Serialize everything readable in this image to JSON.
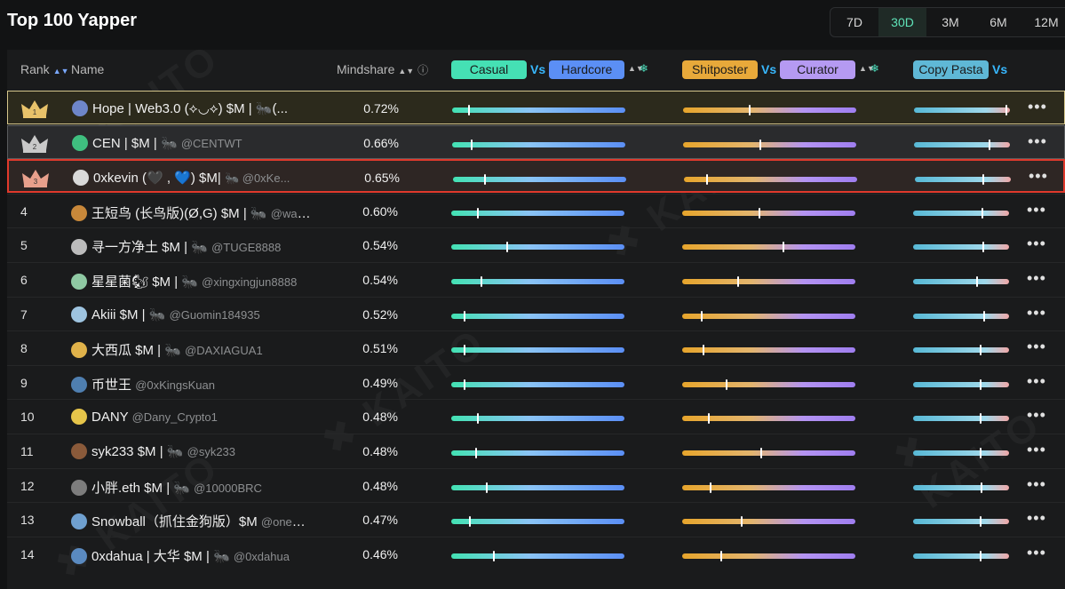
{
  "title": "Top 100 Yapper",
  "periods": [
    "7D",
    "30D",
    "3M",
    "6M",
    "12M"
  ],
  "active_period": "30D",
  "header": {
    "rank": "Rank",
    "name": "Name",
    "mindshare": "Mindshare",
    "group1": {
      "left": "Casual",
      "vs": "Vs",
      "right": "Hardcore"
    },
    "group2": {
      "left": "Shitposter",
      "vs": "Vs",
      "right": "Curator"
    },
    "group3": {
      "left": "Copy Pasta",
      "vs": "Vs"
    }
  },
  "colors": {
    "casual": "#45e0b4",
    "hardcore": "#5b8ff5",
    "shitposter": "#e8a93a",
    "curator": "#b59af2",
    "copypasta": "#5fb8d6",
    "vs": "#38b8ff",
    "highlight_border": "#e0392c",
    "gold_border": "#d5c78c"
  },
  "rows": [
    {
      "rank": "1",
      "name": "Hope | Web3.0 (⟡◡⟡) $M | 🐜(...",
      "handle": "",
      "mindshare": "0.72%",
      "casual": 0.09,
      "shit": 0.38,
      "copy": 0.95,
      "avatar": "#6e86c9"
    },
    {
      "rank": "2",
      "name": "CEN | $M | 🐜",
      "handle": "@CENTWT",
      "mindshare": "0.66%",
      "casual": 0.11,
      "shit": 0.44,
      "copy": 0.78,
      "avatar": "#3fbf7f"
    },
    {
      "rank": "3",
      "name": "0xkevin (🖤 , 💙) $M|",
      "handle": "🐜 @0xKe...",
      "mindshare": "0.65%",
      "casual": 0.18,
      "shit": 0.13,
      "copy": 0.7,
      "avatar": "#d9d9d9"
    },
    {
      "rank": "4",
      "name": "王短鸟 (长鸟版)(Ø,G) $M | 🐜",
      "handle": "@wang...",
      "mindshare": "0.60%",
      "casual": 0.15,
      "shit": 0.44,
      "copy": 0.71,
      "avatar": "#c8883a"
    },
    {
      "rank": "5",
      "name": "寻一方净土 $M | 🐜",
      "handle": "@TUGE8888",
      "mindshare": "0.54%",
      "casual": 0.32,
      "shit": 0.58,
      "copy": 0.72,
      "avatar": "#bcbcbc"
    },
    {
      "rank": "6",
      "name": "星星菌🐿 $M | 🐜",
      "handle": "@xingxingjun8888",
      "mindshare": "0.54%",
      "casual": 0.17,
      "shit": 0.32,
      "copy": 0.66,
      "avatar": "#8fc9a3"
    },
    {
      "rank": "7",
      "name": "Akiii $M | 🐜",
      "handle": "@Guomin184935",
      "mindshare": "0.52%",
      "casual": 0.07,
      "shit": 0.11,
      "copy": 0.73,
      "avatar": "#9ec4e0"
    },
    {
      "rank": "8",
      "name": "大西瓜 $M | 🐜",
      "handle": "@DAXIAGUA1",
      "mindshare": "0.51%",
      "casual": 0.07,
      "shit": 0.12,
      "copy": 0.69,
      "avatar": "#e0b24a"
    },
    {
      "rank": "9",
      "name": "币世王",
      "handle": "@0xKingsKuan",
      "mindshare": "0.49%",
      "casual": 0.07,
      "shit": 0.25,
      "copy": 0.69,
      "avatar": "#4f7fb0"
    },
    {
      "rank": "10",
      "name": "DANY",
      "handle": "@Dany_Crypto1",
      "mindshare": "0.48%",
      "casual": 0.15,
      "shit": 0.15,
      "copy": 0.69,
      "avatar": "#e6c54a"
    },
    {
      "rank": "11",
      "name": "syk233 $M | 🐜",
      "handle": "@syk233",
      "mindshare": "0.48%",
      "casual": 0.14,
      "shit": 0.45,
      "copy": 0.69,
      "avatar": "#8a5a3a"
    },
    {
      "rank": "12",
      "name": "小胖.eth $M | 🐜",
      "handle": "@10000BRC",
      "mindshare": "0.48%",
      "casual": 0.2,
      "shit": 0.16,
      "copy": 0.7,
      "avatar": "#7d7d7d"
    },
    {
      "rank": "13",
      "name": "Snowball（抓住金狗版）$M",
      "handle": "@one_s...",
      "mindshare": "0.47%",
      "casual": 0.1,
      "shit": 0.34,
      "copy": 0.69,
      "avatar": "#6fa0d0"
    },
    {
      "rank": "14",
      "name": "0xdahua | 大华 $M | 🐜",
      "handle": "@0xdahua",
      "mindshare": "0.46%",
      "casual": 0.24,
      "shit": 0.22,
      "copy": 0.69,
      "avatar": "#5a8ac0"
    }
  ]
}
